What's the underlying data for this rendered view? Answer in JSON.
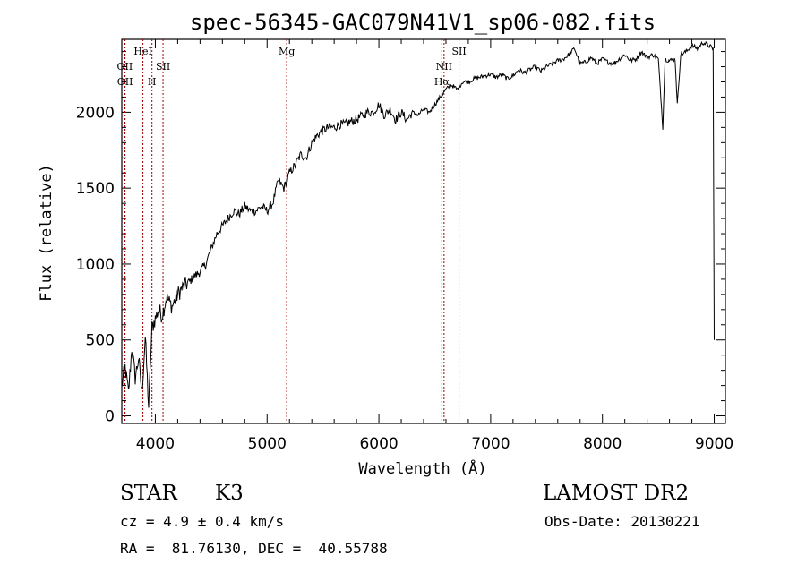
{
  "chart_data": {
    "type": "line",
    "title": "spec-56345-GAC079N41V1_sp06-082.fits",
    "xlabel": "Wavelength (Å)",
    "ylabel": "Flux (relative)",
    "xlim": [
      3700,
      9100
    ],
    "ylim": [
      -50,
      2480
    ],
    "x_ticks": [
      4000,
      5000,
      6000,
      7000,
      8000,
      9000
    ],
    "y_ticks": [
      0,
      500,
      1000,
      1500,
      2000
    ],
    "grid": false,
    "line_color": "#000000",
    "marker_color": "#a00000",
    "line_markers": [
      {
        "label": "OII",
        "x": 3727,
        "row": 3
      },
      {
        "label": "OII",
        "x": 3729,
        "row": 4
      },
      {
        "label": "HeI",
        "x": 3889,
        "row": 1
      },
      {
        "label": "H",
        "x": 3970,
        "row": 4
      },
      {
        "label": "SII",
        "x": 4069,
        "row": 3
      },
      {
        "label": "Mg",
        "x": 5175,
        "row": 1
      },
      {
        "label": "NII",
        "x": 6583,
        "row": 3
      },
      {
        "label": "Hα",
        "x": 6563,
        "row": 4
      },
      {
        "label": "SII",
        "x": 6717,
        "row": 1
      }
    ],
    "series": [
      {
        "x": [
          3700,
          3730,
          3760,
          3790,
          3820,
          3850,
          3880,
          3910,
          3940,
          3970,
          4000,
          4030,
          4060,
          4100,
          4150,
          4200,
          4250,
          4300,
          4350,
          4400,
          4450,
          4500,
          4550,
          4600,
          4650,
          4700,
          4750,
          4800,
          4850,
          4900,
          4950,
          5000,
          5050,
          5100,
          5150,
          5200,
          5250,
          5300,
          5350,
          5400,
          5450,
          5500,
          5550,
          5600,
          5650,
          5700,
          5750,
          5800,
          5850,
          5900,
          5950,
          6000,
          6050,
          6100,
          6150,
          6200,
          6250,
          6300,
          6350,
          6400,
          6450,
          6500,
          6550,
          6600,
          6650,
          6700,
          6750,
          6800,
          6850,
          6900,
          6950,
          7000,
          7050,
          7100,
          7150,
          7200,
          7250,
          7300,
          7350,
          7400,
          7450,
          7500,
          7550,
          7600,
          7650,
          7700,
          7750,
          7800,
          7850,
          7900,
          7950,
          8000,
          8050,
          8100,
          8150,
          8200,
          8250,
          8300,
          8350,
          8400,
          8450,
          8500,
          8540,
          8560,
          8600,
          8650,
          8670,
          8700,
          8750,
          8800,
          8850,
          8900,
          8950,
          8990,
          9000
        ],
        "y": [
          200,
          320,
          150,
          450,
          250,
          380,
          150,
          520,
          60,
          580,
          640,
          700,
          660,
          780,
          720,
          800,
          850,
          880,
          920,
          950,
          1000,
          1100,
          1200,
          1250,
          1300,
          1350,
          1330,
          1380,
          1350,
          1350,
          1380,
          1350,
          1400,
          1550,
          1500,
          1600,
          1650,
          1720,
          1700,
          1800,
          1850,
          1880,
          1900,
          1900,
          1920,
          1920,
          1940,
          1950,
          1980,
          2000,
          2000,
          2050,
          1980,
          2020,
          1950,
          2000,
          1950,
          2000,
          1980,
          2020,
          2000,
          2050,
          2100,
          2150,
          2180,
          2150,
          2200,
          2200,
          2220,
          2230,
          2240,
          2250,
          2230,
          2250,
          2220,
          2240,
          2280,
          2260,
          2280,
          2300,
          2270,
          2300,
          2320,
          2340,
          2350,
          2380,
          2420,
          2320,
          2330,
          2360,
          2320,
          2350,
          2330,
          2320,
          2350,
          2380,
          2340,
          2350,
          2400,
          2360,
          2380,
          2350,
          1900,
          2350,
          2340,
          2350,
          2050,
          2380,
          2400,
          2440,
          2420,
          2460,
          2440,
          2420,
          500
        ]
      }
    ]
  },
  "footer": {
    "class_label": "STAR",
    "subclass": "K3",
    "redshift": "cz = 4.9 ± 0.4 km/s",
    "coords": "RA =  81.76130, DEC =  40.55788",
    "survey": "LAMOST DR2",
    "obs_date": "Obs-Date: 20130221"
  }
}
